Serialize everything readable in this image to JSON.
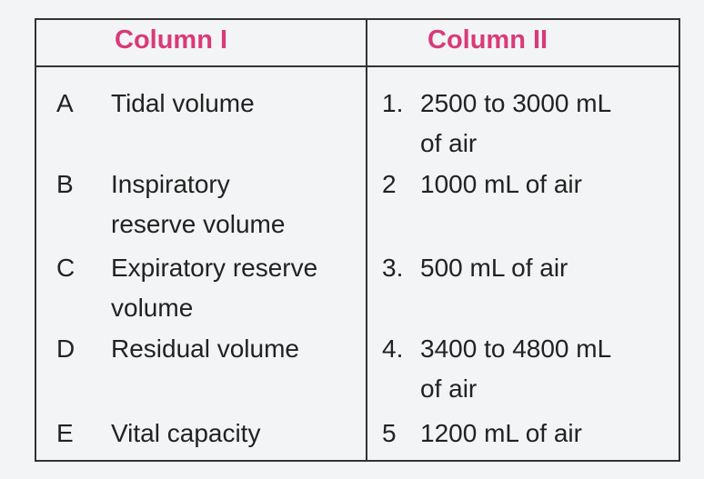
{
  "table": {
    "headers": [
      "Column I",
      "Column II"
    ],
    "rows": [
      {
        "letter": "A",
        "term": "Tidal volume",
        "number": "1.",
        "text": "2500 to 3000 mL of air"
      },
      {
        "letter": "B",
        "term": "Inspiratory reserve volume",
        "number": "2",
        "text": "1000 mL of air"
      },
      {
        "letter": "C",
        "term": "Expiratory reserve volume",
        "number": "3.",
        "text": "500 mL of air"
      },
      {
        "letter": "D",
        "term": "Residual volume",
        "number": "4.",
        "text": "3400 to 4800 mL of air"
      },
      {
        "letter": "E",
        "term": "Vital capacity",
        "number": "5",
        "text": "1200 mL of air"
      }
    ]
  }
}
